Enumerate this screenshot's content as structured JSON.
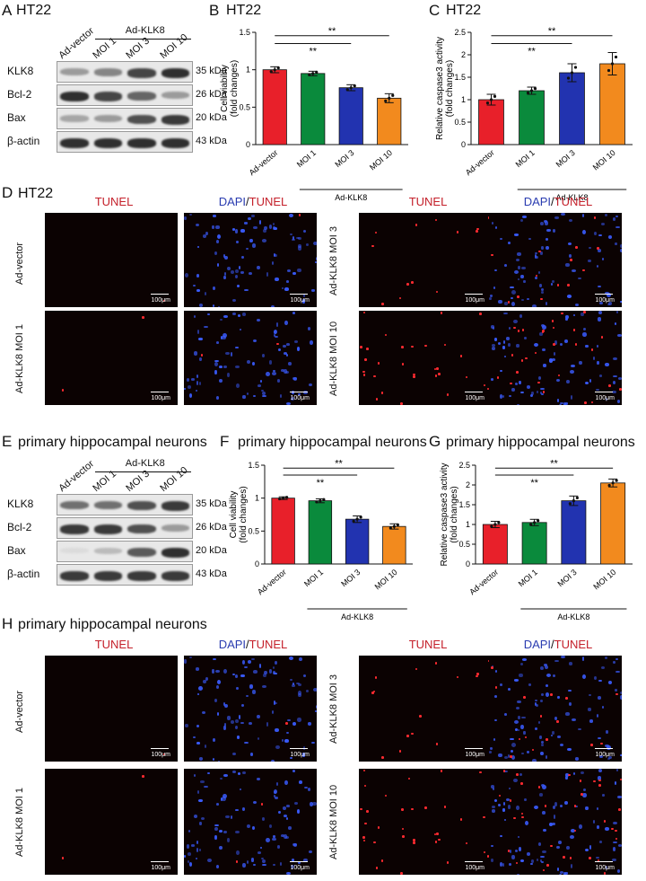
{
  "panels": {
    "A": {
      "letter": "A",
      "title": "HT22",
      "group_label": "Ad-KLK8",
      "lanes": [
        "Ad-vector",
        "MOI 1",
        "MOI 3",
        "MOI 10"
      ],
      "rows": [
        {
          "name": "KLK8",
          "kda": "35 kDa",
          "levels": [
            0.35,
            0.45,
            0.75,
            0.85
          ]
        },
        {
          "name": "Bcl-2",
          "kda": "26 kDa",
          "levels": [
            0.85,
            0.75,
            0.6,
            0.35
          ]
        },
        {
          "name": "Bax",
          "kda": "20 kDa",
          "levels": [
            0.3,
            0.35,
            0.7,
            0.8
          ]
        },
        {
          "name": "β-actin",
          "kda": "43 kDa",
          "levels": [
            0.85,
            0.85,
            0.85,
            0.85
          ]
        }
      ]
    },
    "D": {
      "letter": "D",
      "title": "HT22",
      "headers": {
        "tunel": "TUNEL",
        "dapi": "DAPI",
        "slash": "/",
        "tunel2": "TUNEL"
      },
      "rows": [
        "Ad-vector",
        "Ad-KLK8 MOI 1",
        "Ad-KLK8 MOI 3",
        "Ad-KLK8 MOI 10"
      ],
      "scalebar": "100μm"
    },
    "E": {
      "letter": "E",
      "title": "primary hippocampal neurons",
      "group_label": "Ad-KLK8",
      "lanes": [
        "Ad-vector",
        "MOI 1",
        "MOI 3",
        "MOI 10"
      ],
      "rows": [
        {
          "name": "KLK8",
          "kda": "35 kDa",
          "levels": [
            0.55,
            0.55,
            0.7,
            0.8
          ]
        },
        {
          "name": "Bcl-2",
          "kda": "26 kDa",
          "levels": [
            0.8,
            0.8,
            0.7,
            0.35
          ]
        },
        {
          "name": "Bax",
          "kda": "20 kDa",
          "levels": [
            0.05,
            0.2,
            0.65,
            0.85
          ]
        },
        {
          "name": "β-actin",
          "kda": "43 kDa",
          "levels": [
            0.8,
            0.8,
            0.8,
            0.8
          ]
        }
      ]
    },
    "H": {
      "letter": "H",
      "title": "primary hippocampal neurons",
      "headers": {
        "tunel": "TUNEL",
        "dapi": "DAPI",
        "slash": "/",
        "tunel2": "TUNEL"
      },
      "rows": [
        "Ad-vector",
        "Ad-KLK8 MOI 1",
        "Ad-KLK8 MOI 3",
        "Ad-KLK8 MOI 10"
      ],
      "scalebar": "100μm"
    }
  },
  "chart_data": [
    {
      "panel": "B",
      "title": "HT22",
      "type": "bar",
      "ylabel": "Cell viability\n(fold changes)",
      "categories": [
        "Ad-vector",
        "MOI 1",
        "MOI 3",
        "MOI 10"
      ],
      "values": [
        1.0,
        0.95,
        0.76,
        0.62
      ],
      "errors": [
        0.04,
        0.03,
        0.04,
        0.06
      ],
      "colors": [
        "#e8202a",
        "#0a8a3c",
        "#2233b0",
        "#f28a1e"
      ],
      "ylim": [
        0,
        1.5
      ],
      "yticks": [
        "0",
        "0.5",
        "1",
        "1.5"
      ],
      "group_label": "Ad-KLK8",
      "sig": [
        "**",
        "**"
      ]
    },
    {
      "panel": "C",
      "title": "HT22",
      "type": "bar",
      "ylabel": "Relative caspase3 activity\n(fold changes)",
      "categories": [
        "Ad-vector",
        "MOI 1",
        "MOI 3",
        "MOI 10"
      ],
      "values": [
        1.0,
        1.2,
        1.6,
        1.8
      ],
      "errors": [
        0.12,
        0.08,
        0.2,
        0.25
      ],
      "colors": [
        "#e8202a",
        "#0a8a3c",
        "#2233b0",
        "#f28a1e"
      ],
      "ylim": [
        0,
        2.5
      ],
      "yticks": [
        "0",
        "0.5",
        "1",
        "1.5",
        "2",
        "2.5"
      ],
      "group_label": "Ad-KLK8",
      "sig": [
        "**",
        "**"
      ]
    },
    {
      "panel": "F",
      "title": "primary hippocampal neurons",
      "type": "bar",
      "ylabel": "Cell viability\n(fold changes)",
      "categories": [
        "Ad-vector",
        "MOI 1",
        "MOI 3",
        "MOI 10"
      ],
      "values": [
        1.0,
        0.96,
        0.68,
        0.57
      ],
      "errors": [
        0.02,
        0.03,
        0.05,
        0.04
      ],
      "colors": [
        "#e8202a",
        "#0a8a3c",
        "#2233b0",
        "#f28a1e"
      ],
      "ylim": [
        0,
        1.5
      ],
      "yticks": [
        "0",
        "0.5",
        "1",
        "1.5"
      ],
      "group_label": "Ad-KLK8",
      "sig": [
        "**",
        "**"
      ]
    },
    {
      "panel": "G",
      "title": "primary hippocampal neurons",
      "type": "bar",
      "ylabel": "Relative caspase3 activity\n(fold changes)",
      "categories": [
        "Ad-vector",
        "MOI 1",
        "MOI 3",
        "MOI 10"
      ],
      "values": [
        1.0,
        1.05,
        1.6,
        2.05
      ],
      "errors": [
        0.08,
        0.08,
        0.12,
        0.1
      ],
      "colors": [
        "#e8202a",
        "#0a8a3c",
        "#2233b0",
        "#f28a1e"
      ],
      "ylim": [
        0,
        2.5
      ],
      "yticks": [
        "0",
        "0.5",
        "1",
        "1.5",
        "2",
        "2.5"
      ],
      "group_label": "Ad-KLK8",
      "sig": [
        "**",
        "**"
      ]
    }
  ]
}
